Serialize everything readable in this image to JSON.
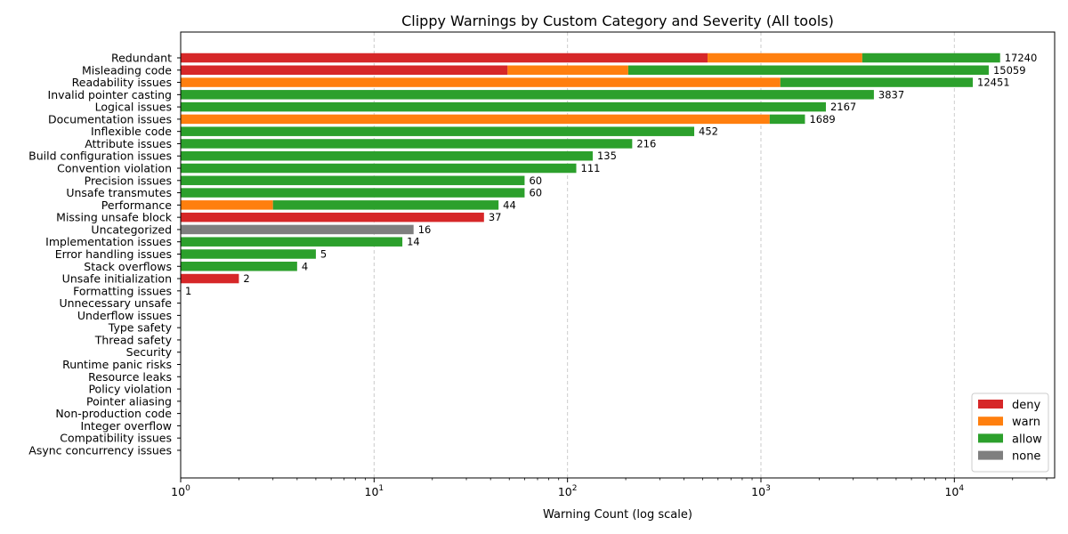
{
  "chart_data": {
    "type": "bar",
    "orientation": "horizontal",
    "stacked": true,
    "title": "Clippy Warnings by Custom Category and Severity (All tools)",
    "xlabel": "Warning Count (log scale)",
    "ylabel": "",
    "xscale": "log",
    "xlim": [
      1,
      33000
    ],
    "x_ticks": [
      {
        "value": 1,
        "base": "10",
        "exp": "0"
      },
      {
        "value": 10,
        "base": "10",
        "exp": "1"
      },
      {
        "value": 100,
        "base": "10",
        "exp": "2"
      },
      {
        "value": 1000,
        "base": "10",
        "exp": "3"
      },
      {
        "value": 10000,
        "base": "10",
        "exp": "4"
      }
    ],
    "grid": {
      "x": true,
      "y": false,
      "style": "dashed"
    },
    "legend_position": "bottom-right",
    "colors": {
      "deny": "#d62728",
      "warn": "#ff7f0e",
      "allow": "#2ca02c",
      "none": "#7f7f7f"
    },
    "series": [
      {
        "name": "deny"
      },
      {
        "name": "warn"
      },
      {
        "name": "allow"
      },
      {
        "name": "none"
      }
    ],
    "categories": [
      {
        "name": "Redundant",
        "total": 17240,
        "segments": {
          "deny": 530,
          "warn": 2810,
          "allow": 13900,
          "none": 0
        },
        "total_label": "17240"
      },
      {
        "name": "Misleading code",
        "total": 15059,
        "segments": {
          "deny": 49,
          "warn": 157,
          "allow": 14853,
          "none": 0
        },
        "total_label": "15059"
      },
      {
        "name": "Readability issues",
        "total": 12451,
        "segments": {
          "deny": 0,
          "warn": 1260,
          "allow": 11191,
          "none": 0
        },
        "total_label": "12451"
      },
      {
        "name": "Invalid pointer casting",
        "total": 3837,
        "segments": {
          "deny": 0,
          "warn": 0,
          "allow": 3837,
          "none": 0
        },
        "total_label": "3837"
      },
      {
        "name": "Logical issues",
        "total": 2167,
        "segments": {
          "deny": 0,
          "warn": 0,
          "allow": 2167,
          "none": 0
        },
        "total_label": "2167"
      },
      {
        "name": "Documentation issues",
        "total": 1689,
        "segments": {
          "deny": 0,
          "warn": 1110,
          "allow": 579,
          "none": 0
        },
        "total_label": "1689"
      },
      {
        "name": "Inflexible code",
        "total": 452,
        "segments": {
          "deny": 0,
          "warn": 0,
          "allow": 452,
          "none": 0
        },
        "total_label": "452"
      },
      {
        "name": "Attribute issues",
        "total": 216,
        "segments": {
          "deny": 0,
          "warn": 0,
          "allow": 216,
          "none": 0
        },
        "total_label": "216"
      },
      {
        "name": "Build configuration issues",
        "total": 135,
        "segments": {
          "deny": 0,
          "warn": 0,
          "allow": 135,
          "none": 0
        },
        "total_label": "135"
      },
      {
        "name": "Convention violation",
        "total": 111,
        "segments": {
          "deny": 0,
          "warn": 0,
          "allow": 111,
          "none": 0
        },
        "total_label": "111"
      },
      {
        "name": "Precision issues",
        "total": 60,
        "segments": {
          "deny": 0,
          "warn": 0,
          "allow": 60,
          "none": 0
        },
        "total_label": "60"
      },
      {
        "name": "Unsafe transmutes",
        "total": 60,
        "segments": {
          "deny": 0,
          "warn": 0,
          "allow": 60,
          "none": 0
        },
        "total_label": "60"
      },
      {
        "name": "Performance",
        "total": 44,
        "segments": {
          "deny": 0,
          "warn": 3,
          "allow": 41,
          "none": 0
        },
        "total_label": "44"
      },
      {
        "name": "Missing unsafe block",
        "total": 37,
        "segments": {
          "deny": 37,
          "warn": 0,
          "allow": 0,
          "none": 0
        },
        "total_label": "37"
      },
      {
        "name": "Uncategorized",
        "total": 16,
        "segments": {
          "deny": 0,
          "warn": 0,
          "allow": 0,
          "none": 16
        },
        "total_label": "16"
      },
      {
        "name": "Implementation issues",
        "total": 14,
        "segments": {
          "deny": 0,
          "warn": 0,
          "allow": 14,
          "none": 0
        },
        "total_label": "14"
      },
      {
        "name": "Error handling issues",
        "total": 5,
        "segments": {
          "deny": 0,
          "warn": 0,
          "allow": 5,
          "none": 0
        },
        "total_label": "5"
      },
      {
        "name": "Stack overflows",
        "total": 4,
        "segments": {
          "deny": 0,
          "warn": 0,
          "allow": 4,
          "none": 0
        },
        "total_label": "4"
      },
      {
        "name": "Unsafe initialization",
        "total": 2,
        "segments": {
          "deny": 2,
          "warn": 0,
          "allow": 0,
          "none": 0
        },
        "total_label": "2"
      },
      {
        "name": "Formatting issues",
        "total": 1,
        "segments": {
          "deny": 0,
          "warn": 0,
          "allow": 1,
          "none": 0
        },
        "total_label": "1"
      },
      {
        "name": "Unnecessary unsafe",
        "total": 0,
        "segments": {
          "deny": 0,
          "warn": 0,
          "allow": 0,
          "none": 0
        },
        "total_label": ""
      },
      {
        "name": "Underflow issues",
        "total": 0,
        "segments": {
          "deny": 0,
          "warn": 0,
          "allow": 0,
          "none": 0
        },
        "total_label": ""
      },
      {
        "name": "Type safety",
        "total": 0,
        "segments": {
          "deny": 0,
          "warn": 0,
          "allow": 0,
          "none": 0
        },
        "total_label": ""
      },
      {
        "name": "Thread safety",
        "total": 0,
        "segments": {
          "deny": 0,
          "warn": 0,
          "allow": 0,
          "none": 0
        },
        "total_label": ""
      },
      {
        "name": "Security",
        "total": 0,
        "segments": {
          "deny": 0,
          "warn": 0,
          "allow": 0,
          "none": 0
        },
        "total_label": ""
      },
      {
        "name": "Runtime panic risks",
        "total": 0,
        "segments": {
          "deny": 0,
          "warn": 0,
          "allow": 0,
          "none": 0
        },
        "total_label": ""
      },
      {
        "name": "Resource leaks",
        "total": 0,
        "segments": {
          "deny": 0,
          "warn": 0,
          "allow": 0,
          "none": 0
        },
        "total_label": ""
      },
      {
        "name": "Policy violation",
        "total": 0,
        "segments": {
          "deny": 0,
          "warn": 0,
          "allow": 0,
          "none": 0
        },
        "total_label": ""
      },
      {
        "name": "Pointer aliasing",
        "total": 0,
        "segments": {
          "deny": 0,
          "warn": 0,
          "allow": 0,
          "none": 0
        },
        "total_label": ""
      },
      {
        "name": "Non-production code",
        "total": 0,
        "segments": {
          "deny": 0,
          "warn": 0,
          "allow": 0,
          "none": 0
        },
        "total_label": ""
      },
      {
        "name": "Integer overflow",
        "total": 0,
        "segments": {
          "deny": 0,
          "warn": 0,
          "allow": 0,
          "none": 0
        },
        "total_label": ""
      },
      {
        "name": "Compatibility issues",
        "total": 0,
        "segments": {
          "deny": 0,
          "warn": 0,
          "allow": 0,
          "none": 0
        },
        "total_label": ""
      },
      {
        "name": "Async concurrency issues",
        "total": 0,
        "segments": {
          "deny": 0,
          "warn": 0,
          "allow": 0,
          "none": 0
        },
        "total_label": ""
      }
    ]
  }
}
